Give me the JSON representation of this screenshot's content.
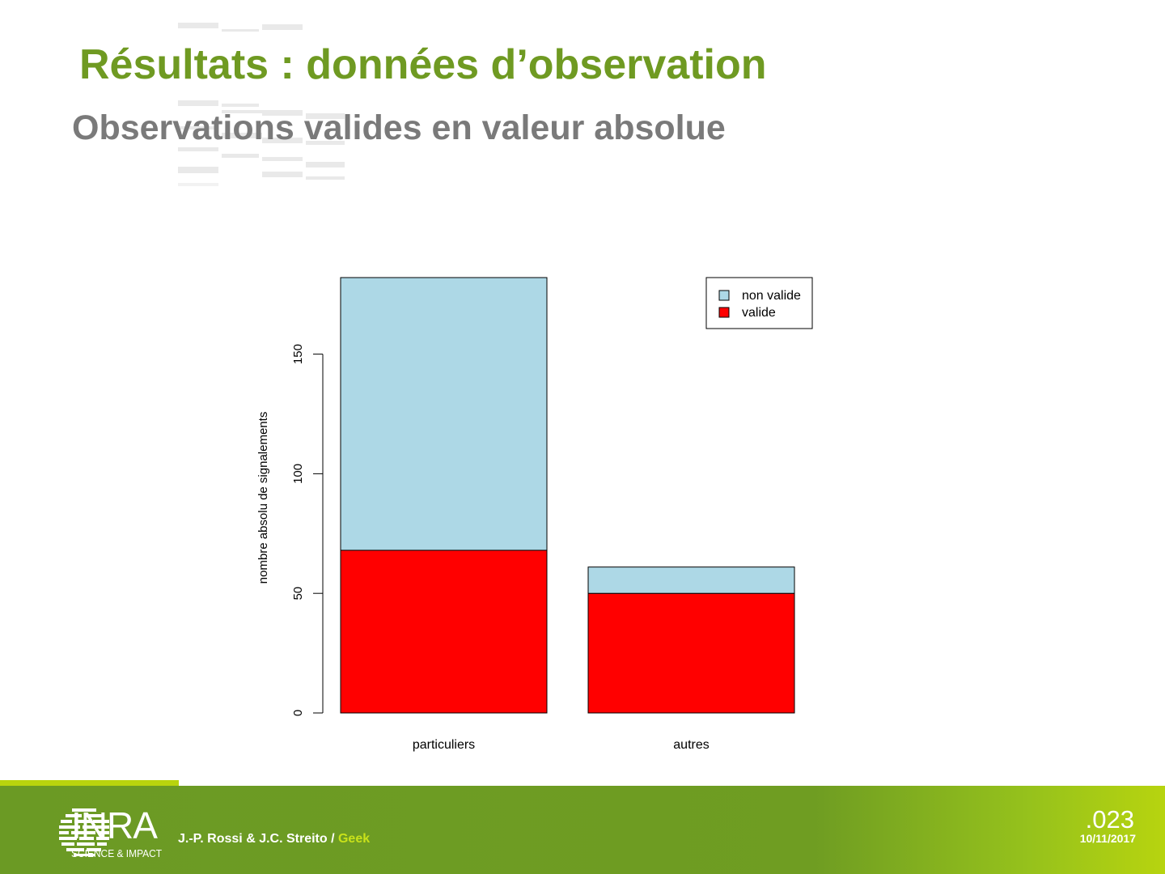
{
  "slide": {
    "title": "Résultats : données d’observation",
    "subtitle": "Observations valides en valeur absolue"
  },
  "colors": {
    "title": "#6f9a22",
    "subtitle": "#7a7a7a",
    "footer": "#6f9d22",
    "footer_accent": "#b9d40d",
    "non_valide": "#add8e6",
    "valide": "#ff0000"
  },
  "footer": {
    "logo_text": "INRA",
    "logo_tagline": "SCIENCE & IMPACT",
    "authors": "J.-P. Rossi & J.C. Streito / ",
    "authors_accent": "Geek",
    "page_number": ".023",
    "date": "10/11/2017"
  },
  "chart_data": {
    "type": "bar",
    "stacked": true,
    "categories": [
      "particuliers",
      "autres"
    ],
    "series": [
      {
        "name": "valide",
        "values": [
          68,
          50
        ],
        "color": "#ff0000"
      },
      {
        "name": "non valide",
        "values": [
          114,
          11
        ],
        "color": "#add8e6"
      }
    ],
    "title": "",
    "xlabel": "",
    "ylabel": "nombre absolu de signalements",
    "ylim": [
      0,
      182
    ],
    "yticks": [
      0,
      50,
      100,
      150
    ],
    "legend": {
      "position": "top-right",
      "entries": [
        "non valide",
        "valide"
      ]
    },
    "grid": false
  }
}
